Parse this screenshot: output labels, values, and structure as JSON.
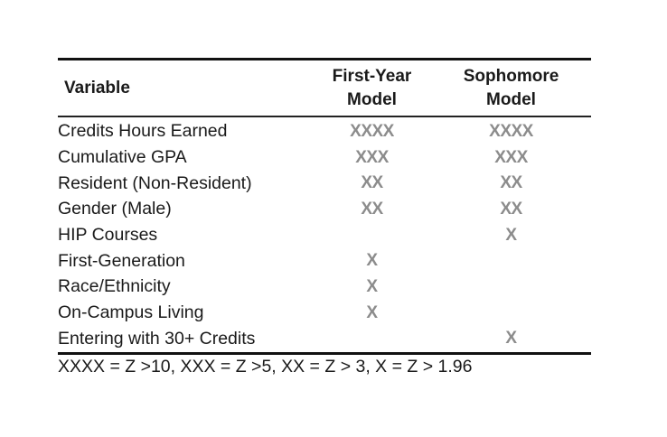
{
  "table": {
    "headers": {
      "variable": "Variable",
      "first_year_line1": "First-Year",
      "first_year_line2": "Model",
      "sophomore_line1": "Sophomore",
      "sophomore_line2": "Model"
    },
    "rows": [
      {
        "variable": "Credits Hours Earned",
        "first_year": "XXXX",
        "sophomore": "XXXX"
      },
      {
        "variable": "Cumulative GPA",
        "first_year": "XXX",
        "sophomore": "XXX"
      },
      {
        "variable": "Resident (Non-Resident)",
        "first_year": "XX",
        "sophomore": "XX"
      },
      {
        "variable": "Gender (Male)",
        "first_year": "XX",
        "sophomore": "XX"
      },
      {
        "variable": "HIP Courses",
        "first_year": "",
        "sophomore": "X"
      },
      {
        "variable": "First-Generation",
        "first_year": "X",
        "sophomore": ""
      },
      {
        "variable": "Race/Ethnicity",
        "first_year": "X",
        "sophomore": ""
      },
      {
        "variable": "On-Campus Living",
        "first_year": "X",
        "sophomore": ""
      },
      {
        "variable": "Entering with 30+ Credits",
        "first_year": "",
        "sophomore": "X"
      }
    ],
    "footnote": "XXXX = Z >10, XXX = Z >5, XX = Z > 3, X = Z > 1.96"
  },
  "colors": {
    "mark": "#8c8c8c",
    "text": "#1a1a1a",
    "rule": "#111111"
  }
}
